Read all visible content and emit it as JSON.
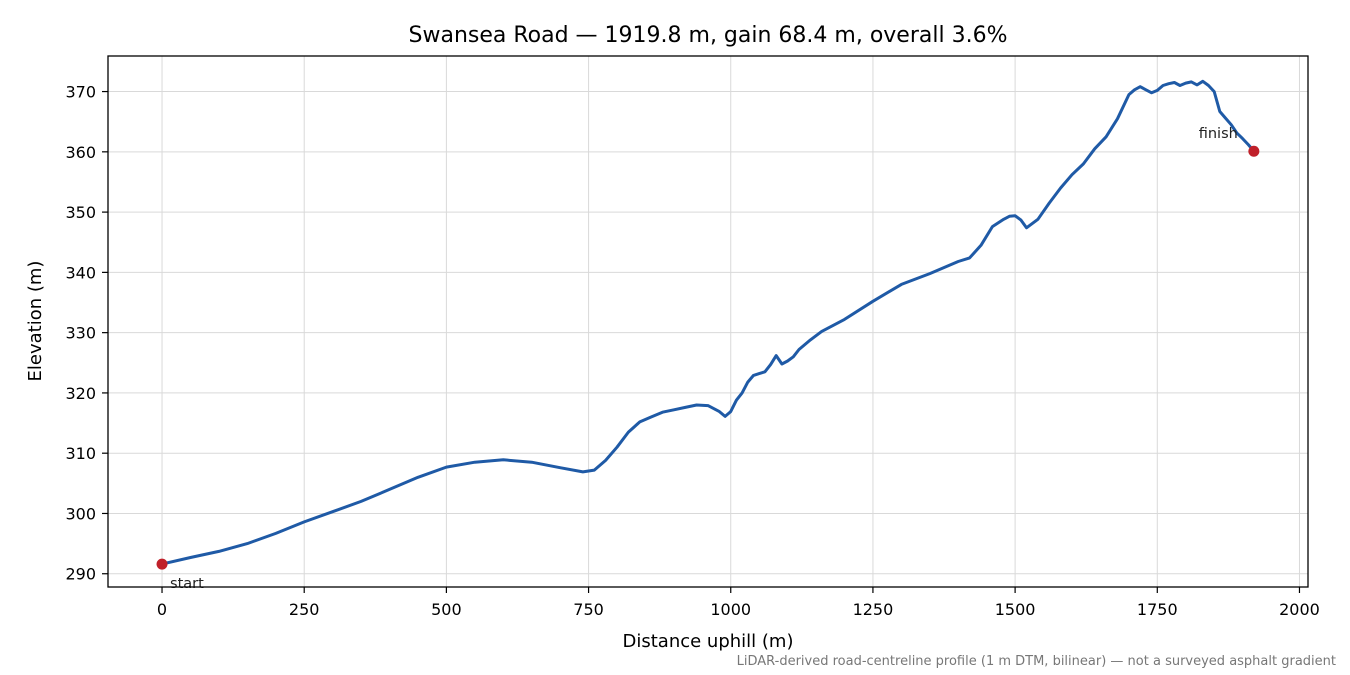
{
  "chart_data": {
    "type": "line",
    "title": "Swansea Road — 1919.8 m, gain 68.4 m, overall 3.6%",
    "xlabel": "Distance uphill (m)",
    "ylabel": "Elevation (m)",
    "xlim": [
      -95,
      2015
    ],
    "ylim": [
      287.8,
      375.9
    ],
    "x_ticks": [
      0,
      250,
      500,
      750,
      1000,
      1250,
      1500,
      1750,
      2000
    ],
    "y_ticks": [
      290,
      300,
      310,
      320,
      330,
      340,
      350,
      360,
      370
    ],
    "grid": true,
    "line_color": "#1f5aa6",
    "marker_color": "#c0202a",
    "series": [
      {
        "x": [
          0,
          50,
          100,
          150,
          200,
          250,
          300,
          350,
          400,
          450,
          500,
          550,
          600,
          650,
          700,
          740,
          760,
          780,
          800,
          820,
          840,
          860,
          880,
          900,
          920,
          940,
          960,
          980,
          990,
          1000,
          1010,
          1020,
          1030,
          1040,
          1050,
          1060,
          1070,
          1080,
          1090,
          1100,
          1110,
          1120,
          1140,
          1160,
          1180,
          1200,
          1250,
          1300,
          1350,
          1400,
          1420,
          1440,
          1460,
          1480,
          1490,
          1500,
          1510,
          1520,
          1540,
          1560,
          1580,
          1600,
          1620,
          1640,
          1660,
          1680,
          1700,
          1710,
          1720,
          1730,
          1740,
          1750,
          1760,
          1770,
          1780,
          1790,
          1800,
          1810,
          1820,
          1830,
          1840,
          1850,
          1860,
          1870,
          1880,
          1890,
          1900,
          1910,
          1919.8
        ],
        "y": [
          291.6,
          292.7,
          293.7,
          295.0,
          296.7,
          298.6,
          300.3,
          302.0,
          304.0,
          306.0,
          307.7,
          308.5,
          308.9,
          308.5,
          307.6,
          306.9,
          307.2,
          308.8,
          311.0,
          313.5,
          315.2,
          316.0,
          316.8,
          317.2,
          317.6,
          318.0,
          317.9,
          316.9,
          316.1,
          316.9,
          318.8,
          320.0,
          321.8,
          322.9,
          323.2,
          323.5,
          324.7,
          326.2,
          324.8,
          325.3,
          326.0,
          327.2,
          328.8,
          330.2,
          331.2,
          332.2,
          335.2,
          338.0,
          339.8,
          341.8,
          342.4,
          344.5,
          347.6,
          348.8,
          349.3,
          349.4,
          348.7,
          347.4,
          348.8,
          351.5,
          354.0,
          356.2,
          358.0,
          360.5,
          362.5,
          365.5,
          369.5,
          370.3,
          370.8,
          370.3,
          369.8,
          370.2,
          371.0,
          371.3,
          371.5,
          371.0,
          371.4,
          371.6,
          371.1,
          371.7,
          371.0,
          370.0,
          366.7,
          365.6,
          364.5,
          363.1,
          362.2,
          361.2,
          360.1
        ]
      }
    ],
    "annotations": [
      {
        "text": "start",
        "x": 0,
        "y": 291.6
      },
      {
        "text": "finish",
        "x": 1919.8,
        "y": 360.1
      }
    ],
    "footnote": "LiDAR-derived road-centreline profile (1 m DTM, bilinear) — not a surveyed asphalt gradient"
  }
}
